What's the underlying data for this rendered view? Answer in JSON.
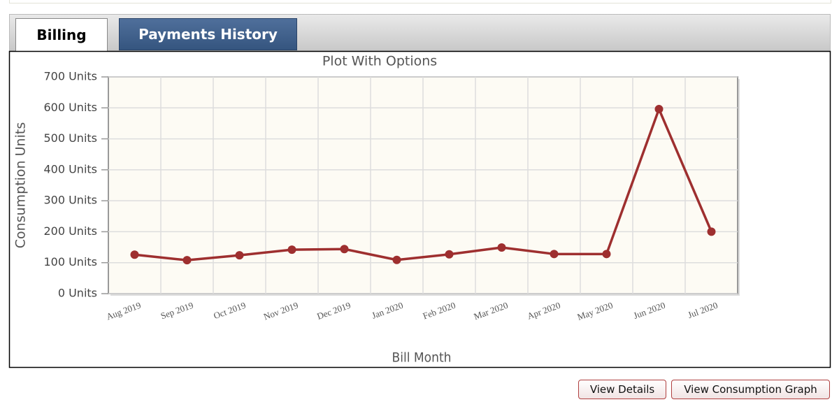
{
  "tabs": [
    "Billing",
    "Payments History"
  ],
  "chart_data": {
    "type": "line",
    "title": "Plot With Options",
    "x_label": "Bill Month",
    "y_label": "Consumption Units",
    "categories": [
      "Aug 2019",
      "Sep 2019",
      "Oct 2019",
      "Nov 2019",
      "Dec 2019",
      "Jan 2020",
      "Feb 2020",
      "Mar 2020",
      "Apr 2020",
      "May 2020",
      "Jun 2020",
      "Jul 2020"
    ],
    "series": [
      {
        "name": "Consumption",
        "color": "#9e2f2f",
        "values": [
          126,
          108,
          124,
          142,
          144,
          109,
          127,
          149,
          128,
          128,
          596,
          200
        ]
      }
    ],
    "ylim": [
      0,
      700
    ],
    "yticks": [
      {
        "value": 0,
        "label": "0 Units"
      },
      {
        "value": 100,
        "label": "100 Units"
      },
      {
        "value": 200,
        "label": "200 Units"
      },
      {
        "value": 300,
        "label": "300 Units"
      },
      {
        "value": 400,
        "label": "400 Units"
      },
      {
        "value": 500,
        "label": "500 Units"
      },
      {
        "value": 600,
        "label": "600 Units"
      },
      {
        "value": 700,
        "label": "700 Units"
      }
    ],
    "grid": true
  },
  "buttons": [
    "View Details",
    "View Consumption Graph"
  ]
}
